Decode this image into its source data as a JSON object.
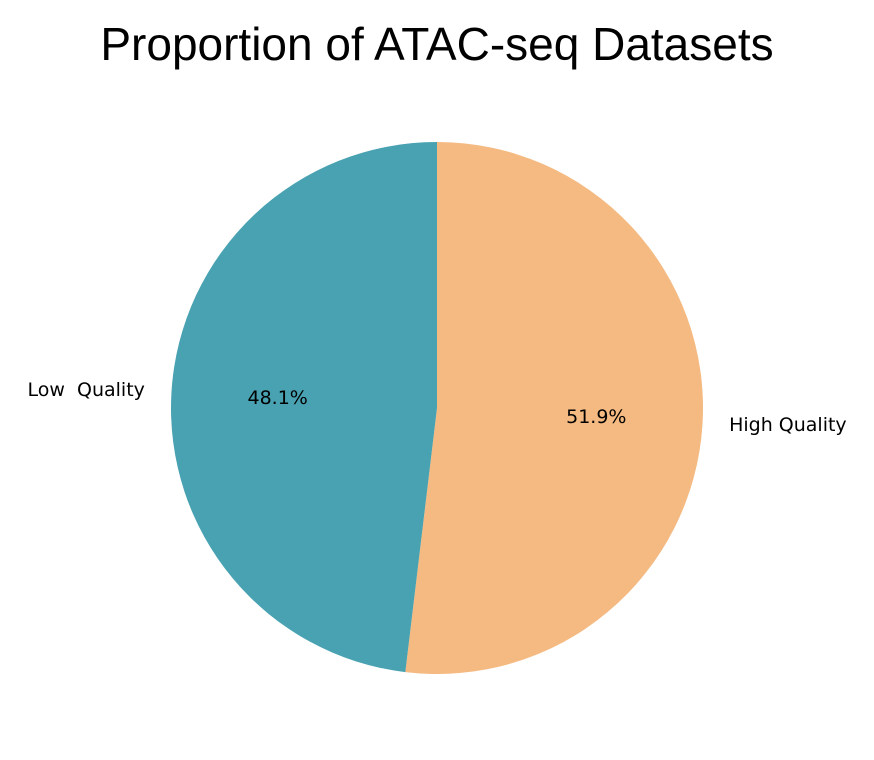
{
  "chart_data": {
    "type": "pie",
    "title": "Proportion of ATAC-seq Datasets",
    "labels": [
      "High Quality",
      "Low  Quality"
    ],
    "values": [
      51.9,
      48.1
    ],
    "percent_labels": [
      "51.9%",
      "48.1%"
    ],
    "colors": [
      "#F4BA81",
      "#48A2B1"
    ],
    "start": "top",
    "direction": "clockwise",
    "legend": "none"
  }
}
